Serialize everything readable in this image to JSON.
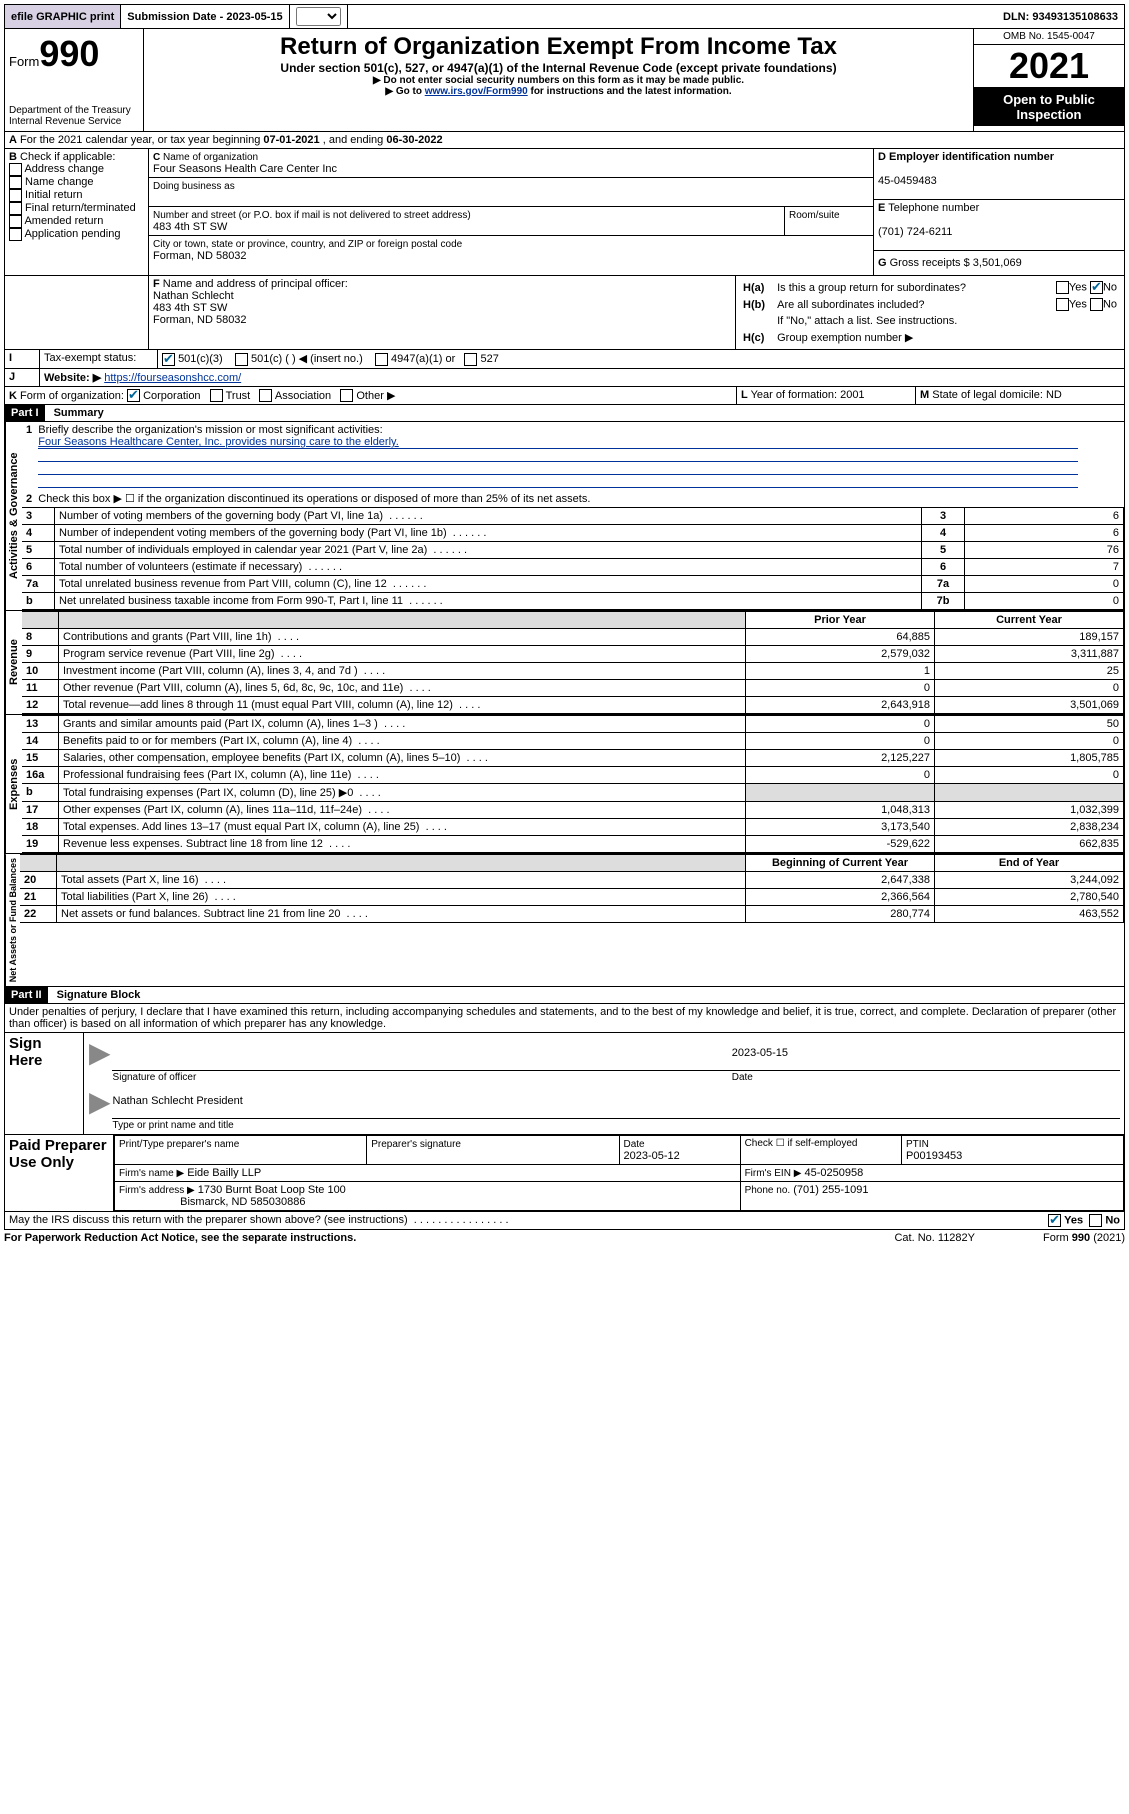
{
  "topbar": {
    "efile": "efile GRAPHIC print",
    "sub_lbl": "Submission Date -",
    "sub_date": "2023-05-15",
    "dln": "DLN: 93493135108633"
  },
  "header": {
    "form_word": "Form",
    "form_num": "990",
    "dept": "Department of the Treasury",
    "irs": "Internal Revenue Service",
    "title": "Return of Organization Exempt From Income Tax",
    "line1": "Under section 501(c), 527, or 4947(a)(1) of the Internal Revenue Code (except private foundations)",
    "line2": "▶ Do not enter social security numbers on this form as it may be made public.",
    "line3a": "▶ Go to ",
    "line3link": "www.irs.gov/Form990",
    "line3b": " for instructions and the latest information.",
    "omb": "OMB No. 1545-0047",
    "year": "2021",
    "open": "Open to Public Inspection"
  },
  "A": {
    "text": "For the 2021 calendar year, or tax year beginning ",
    "begin": "07-01-2021",
    "mid": " , and ending ",
    "end": "06-30-2022"
  },
  "B": {
    "title": "Check if applicable:",
    "opts": [
      "Address change",
      "Name change",
      "Initial return",
      "Final return/terminated",
      "Amended return",
      "Application pending"
    ]
  },
  "C": {
    "name_lbl": "Name of organization",
    "name": "Four Seasons Health Care Center Inc",
    "dba_lbl": "Doing business as",
    "addr_lbl": "Number and street (or P.O. box if mail is not delivered to street address)",
    "room_lbl": "Room/suite",
    "addr": "483 4th ST SW",
    "city_lbl": "City or town, state or province, country, and ZIP or foreign postal code",
    "city": "Forman, ND  58032"
  },
  "D": {
    "lbl": "Employer identification number",
    "val": "45-0459483"
  },
  "E": {
    "lbl": "Telephone number",
    "val": "(701) 724-6211"
  },
  "G": {
    "lbl": "Gross receipts $",
    "val": "3,501,069"
  },
  "F": {
    "lbl": "Name and address of principal officer:",
    "name": "Nathan Schlecht",
    "addr1": "483 4th ST SW",
    "addr2": "Forman, ND  58032"
  },
  "H": {
    "a": "Is this a group return for subordinates?",
    "b": "Are all subordinates included?",
    "bnote": "If \"No,\" attach a list. See instructions.",
    "c": "Group exemption number ▶",
    "yes": "Yes",
    "no": "No"
  },
  "I": {
    "lbl": "Tax-exempt status:",
    "o1": "501(c)(3)",
    "o2": "501(c) (   ) ◀ (insert no.)",
    "o3": "4947(a)(1) or",
    "o4": "527"
  },
  "J": {
    "lbl": "Website: ▶",
    "val": "https://fourseasonshcc.com/"
  },
  "K": {
    "lbl": "Form of organization:",
    "o1": "Corporation",
    "o2": "Trust",
    "o3": "Association",
    "o4": "Other ▶"
  },
  "L": {
    "lbl": "Year of formation:",
    "val": "2001"
  },
  "M": {
    "lbl": "State of legal domicile:",
    "val": "ND"
  },
  "part1": {
    "bar": "Part I",
    "title": "Summary",
    "l1a": "Briefly describe the organization's mission or most significant activities:",
    "l1b": "Four Seasons Healthcare Center, Inc. provides nursing care to the elderly.",
    "l2": "Check this box ▶ ☐  if the organization discontinued its operations or disposed of more than 25% of its net assets.",
    "rows_ag": [
      {
        "n": "3",
        "t": "Number of voting members of the governing body (Part VI, line 1a)",
        "box": "3",
        "v": "6"
      },
      {
        "n": "4",
        "t": "Number of independent voting members of the governing body (Part VI, line 1b)",
        "box": "4",
        "v": "6"
      },
      {
        "n": "5",
        "t": "Total number of individuals employed in calendar year 2021 (Part V, line 2a)",
        "box": "5",
        "v": "76"
      },
      {
        "n": "6",
        "t": "Total number of volunteers (estimate if necessary)",
        "box": "6",
        "v": "7"
      },
      {
        "n": "7a",
        "t": "Total unrelated business revenue from Part VIII, column (C), line 12",
        "box": "7a",
        "v": "0"
      },
      {
        "n": "b",
        "t": "Net unrelated business taxable income from Form 990-T, Part I, line 11",
        "box": "7b",
        "v": "0"
      }
    ],
    "hdr_prior": "Prior Year",
    "hdr_curr": "Current Year",
    "rows_rev": [
      {
        "n": "8",
        "t": "Contributions and grants (Part VIII, line 1h)",
        "p": "64,885",
        "c": "189,157"
      },
      {
        "n": "9",
        "t": "Program service revenue (Part VIII, line 2g)",
        "p": "2,579,032",
        "c": "3,311,887"
      },
      {
        "n": "10",
        "t": "Investment income (Part VIII, column (A), lines 3, 4, and 7d )",
        "p": "1",
        "c": "25"
      },
      {
        "n": "11",
        "t": "Other revenue (Part VIII, column (A), lines 5, 6d, 8c, 9c, 10c, and 11e)",
        "p": "0",
        "c": "0"
      },
      {
        "n": "12",
        "t": "Total revenue—add lines 8 through 11 (must equal Part VIII, column (A), line 12)",
        "p": "2,643,918",
        "c": "3,501,069"
      }
    ],
    "rows_exp": [
      {
        "n": "13",
        "t": "Grants and similar amounts paid (Part IX, column (A), lines 1–3 )",
        "p": "0",
        "c": "50"
      },
      {
        "n": "14",
        "t": "Benefits paid to or for members (Part IX, column (A), line 4)",
        "p": "0",
        "c": "0"
      },
      {
        "n": "15",
        "t": "Salaries, other compensation, employee benefits (Part IX, column (A), lines 5–10)",
        "p": "2,125,227",
        "c": "1,805,785"
      },
      {
        "n": "16a",
        "t": "Professional fundraising fees (Part IX, column (A), line 11e)",
        "p": "0",
        "c": "0"
      },
      {
        "n": "b",
        "t": "Total fundraising expenses (Part IX, column (D), line 25) ▶0",
        "p": "",
        "c": "",
        "shade": true
      },
      {
        "n": "17",
        "t": "Other expenses (Part IX, column (A), lines 11a–11d, 11f–24e)",
        "p": "1,048,313",
        "c": "1,032,399"
      },
      {
        "n": "18",
        "t": "Total expenses. Add lines 13–17 (must equal Part IX, column (A), line 25)",
        "p": "3,173,540",
        "c": "2,838,234"
      },
      {
        "n": "19",
        "t": "Revenue less expenses. Subtract line 18 from line 12",
        "p": "-529,622",
        "c": "662,835"
      }
    ],
    "hdr_bcy": "Beginning of Current Year",
    "hdr_eoy": "End of Year",
    "rows_na": [
      {
        "n": "20",
        "t": "Total assets (Part X, line 16)",
        "p": "2,647,338",
        "c": "3,244,092"
      },
      {
        "n": "21",
        "t": "Total liabilities (Part X, line 26)",
        "p": "2,366,564",
        "c": "2,780,540"
      },
      {
        "n": "22",
        "t": "Net assets or fund balances. Subtract line 21 from line 20",
        "p": "280,774",
        "c": "463,552"
      }
    ],
    "side_ag": "Activities & Governance",
    "side_rev": "Revenue",
    "side_exp": "Expenses",
    "side_na": "Net Assets or Fund Balances"
  },
  "part2": {
    "bar": "Part II",
    "title": "Signature Block",
    "decl": "Under penalties of perjury, I declare that I have examined this return, including accompanying schedules and statements, and to the best of my knowledge and belief, it is true, correct, and complete. Declaration of preparer (other than officer) is based on all information of which preparer has any knowledge.",
    "sign_here": "Sign Here",
    "sig_lbl": "Signature of officer",
    "date_lbl": "Date",
    "sig_date": "2023-05-15",
    "officer": "Nathan Schlecht  President",
    "officer_lbl": "Type or print name and title",
    "paid": "Paid Preparer Use Only",
    "pt_name_lbl": "Print/Type preparer's name",
    "pt_sig_lbl": "Preparer's signature",
    "pt_date_lbl": "Date",
    "pt_date": "2023-05-12",
    "pt_self": "Check ☐ if self-employed",
    "ptin_lbl": "PTIN",
    "ptin": "P00193453",
    "firm_name_lbl": "Firm's name    ▶",
    "firm_name": "Eide Bailly LLP",
    "firm_ein_lbl": "Firm's EIN ▶",
    "firm_ein": "45-0250958",
    "firm_addr_lbl": "Firm's address ▶",
    "firm_addr1": "1730 Burnt Boat Loop Ste 100",
    "firm_addr2": "Bismarck, ND  585030886",
    "firm_phone_lbl": "Phone no.",
    "firm_phone": "(701) 255-1091",
    "may": "May the IRS discuss this return with the preparer shown above? (see instructions)",
    "yes": "Yes",
    "no": "No"
  },
  "footer": {
    "l": "For Paperwork Reduction Act Notice, see the separate instructions.",
    "m": "Cat. No. 11282Y",
    "r": "Form 990 (2021)"
  }
}
